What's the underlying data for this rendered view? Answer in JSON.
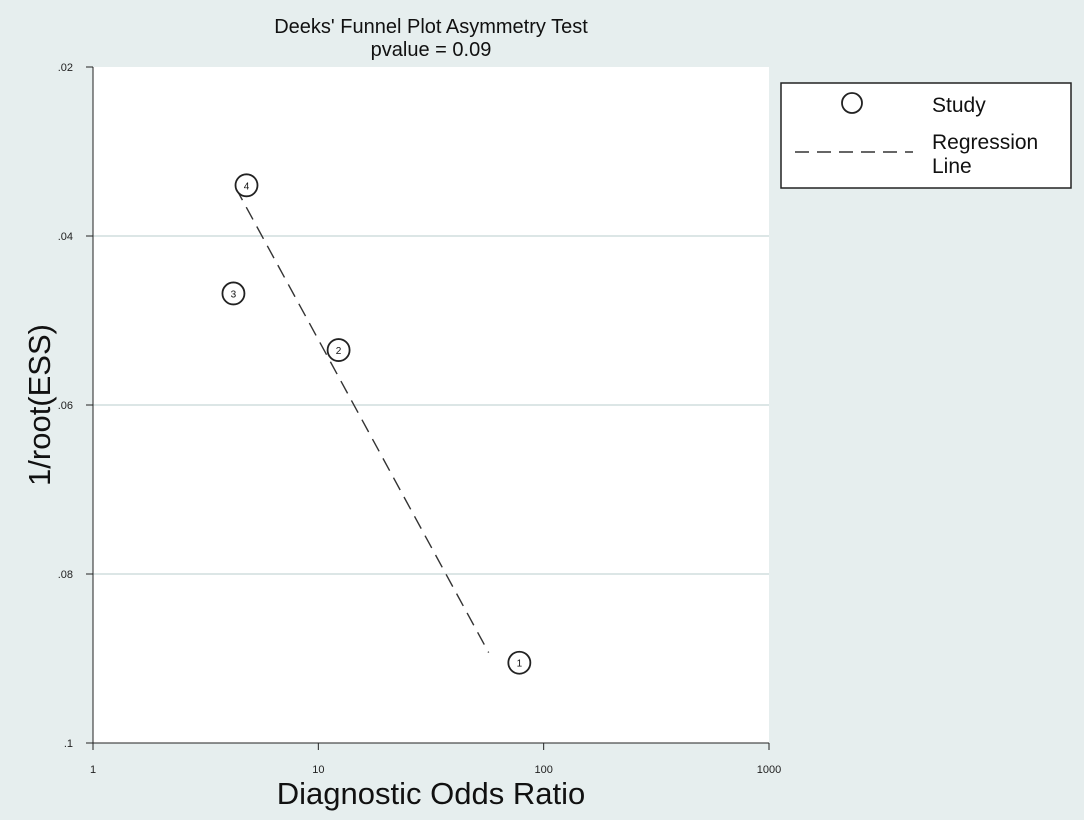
{
  "chart_data": {
    "type": "scatter",
    "title": "Deeks' Funnel Plot Asymmetry Test",
    "subtitle": "pvalue  =   0.09",
    "xlabel": "Diagnostic Odds Ratio",
    "ylabel": "1/root(ESS)",
    "x_scale": "log",
    "xlim": [
      1,
      1000
    ],
    "ylim": [
      0.02,
      0.1
    ],
    "y_inverted": true,
    "x_ticks": [
      1,
      10,
      100,
      1000
    ],
    "x_tick_labels": [
      "1",
      "10",
      "100",
      "1000"
    ],
    "y_ticks": [
      0.02,
      0.04,
      0.06,
      0.08,
      0.1
    ],
    "y_tick_labels": [
      ".02",
      ".04",
      ".06",
      ".08",
      ".1"
    ],
    "grid": "horizontal",
    "legend_position": "right",
    "legend": {
      "study_label": "Study",
      "line_label_1": "Regression",
      "line_label_2": "Line"
    },
    "points": [
      {
        "label": "1",
        "x": 78,
        "y": 0.0905
      },
      {
        "label": "2",
        "x": 12.3,
        "y": 0.0535
      },
      {
        "label": "3",
        "x": 4.2,
        "y": 0.0468
      },
      {
        "label": "4",
        "x": 4.8,
        "y": 0.034
      }
    ],
    "regression_line": {
      "x": [
        4.3,
        57
      ],
      "y": [
        0.0343,
        0.0893
      ]
    }
  }
}
